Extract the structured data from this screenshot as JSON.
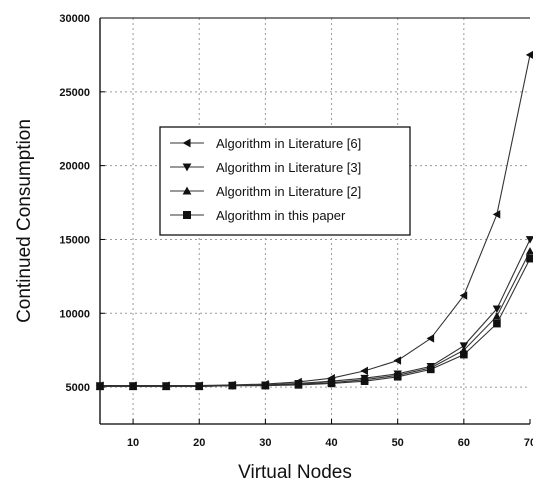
{
  "chart_data": {
    "type": "line",
    "xlabel": "Virtual Nodes",
    "ylabel": "Continued Consumption",
    "xlim": [
      5,
      70
    ],
    "ylim": [
      2500,
      30000
    ],
    "x_ticks": [
      10,
      20,
      30,
      40,
      50,
      60,
      70
    ],
    "x_tick_labels": [
      "10",
      "20",
      "30",
      "40",
      "50",
      "60",
      "70"
    ],
    "y_ticks": [
      5000,
      10000,
      15000,
      20000,
      25000,
      30000
    ],
    "y_tick_labels": [
      "5000",
      "10000",
      "15000",
      "20000",
      "25000",
      "30000"
    ],
    "grid": true,
    "legend_position": "center-left",
    "x": [
      5,
      10,
      15,
      20,
      25,
      30,
      35,
      40,
      45,
      50,
      55,
      60,
      65,
      70
    ],
    "series": [
      {
        "name": "Algorithm in Literature [6]",
        "marker": "triangle-left",
        "values": [
          5100,
          5100,
          5100,
          5100,
          5150,
          5200,
          5350,
          5600,
          6100,
          6800,
          8300,
          11200,
          16700,
          27500
        ]
      },
      {
        "name": "Algorithm in Literature [3]",
        "marker": "triangle-down",
        "values": [
          5100,
          5100,
          5100,
          5100,
          5100,
          5150,
          5250,
          5400,
          5600,
          5900,
          6400,
          7800,
          10300,
          15000
        ]
      },
      {
        "name": "Algorithm in Literature [2]",
        "marker": "triangle-up",
        "values": [
          5050,
          5050,
          5050,
          5050,
          5100,
          5100,
          5200,
          5300,
          5500,
          5800,
          6300,
          7500,
          9800,
          14200
        ]
      },
      {
        "name": "Algorithm in this paper",
        "marker": "square",
        "values": [
          5050,
          5050,
          5050,
          5050,
          5100,
          5100,
          5150,
          5250,
          5400,
          5700,
          6200,
          7200,
          9300,
          13700
        ]
      }
    ]
  },
  "colors": {
    "line": "#333333",
    "marker": "#111111",
    "grid": "#9a9a9a",
    "axis": "#000000"
  }
}
